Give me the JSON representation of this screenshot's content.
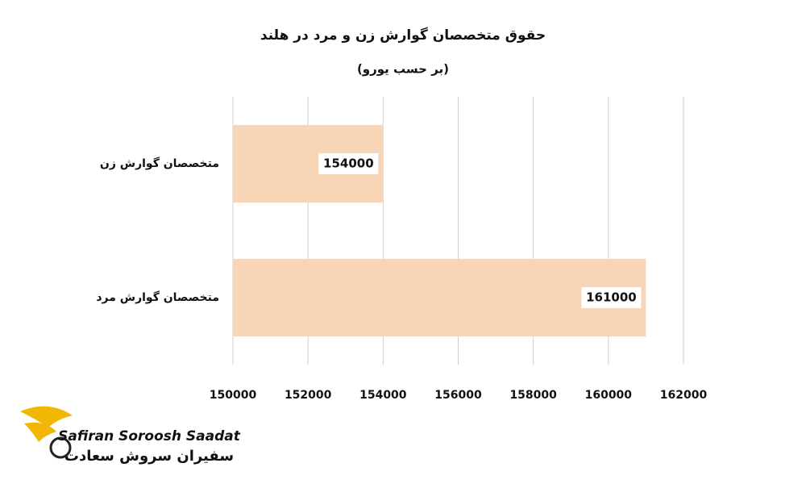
{
  "chart_data": {
    "type": "bar",
    "orientation": "horizontal",
    "title": "حقوق متخصصان گوارش زن و مرد در هلند",
    "subtitle": "(بر حسب یورو)",
    "categories": [
      "متخصصان گوارش زن",
      "متخصصان گوارش مرد"
    ],
    "values": [
      154000,
      161000
    ],
    "color": "#f9d5b7",
    "xlim": [
      150000,
      162000
    ],
    "xticks": [
      150000,
      152000,
      154000,
      156000,
      158000,
      160000,
      162000
    ],
    "grid": true
  },
  "logo": {
    "name_en": "Safiran Soroosh Saadat",
    "name_fa": "سفیران سروش سعادت"
  }
}
